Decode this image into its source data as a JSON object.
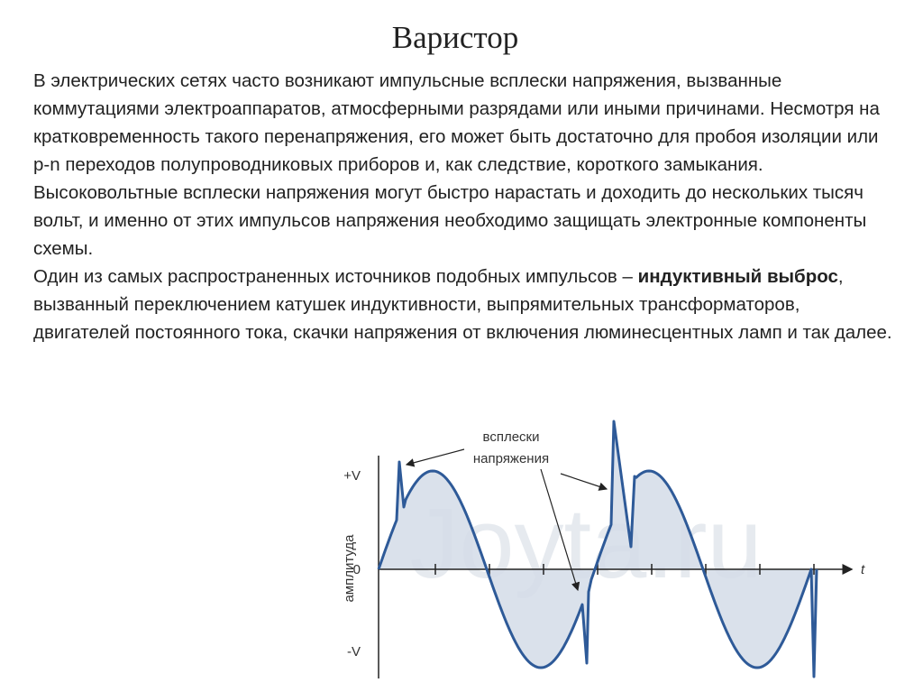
{
  "header": {
    "title": "Варистор"
  },
  "body": {
    "paragraphs": [
      [
        "В электрических сетях часто возникают импульсные всплески напряжения, вызванные коммутациями электроаппаратов, атмосферными разрядами или иными причинами. Несмотря на кратковременность такого перенапряжения, его может быть достаточно для пробоя изоляции или p-n переходов полупроводниковых приборов и, как следствие, короткого замыкания. Высоковольтные всплески напряжения могут быстро нарастать и доходить до нескольких тысяч вольт, и именно от этих импульсов напряжения необходимо защищать электронные компоненты схемы."
      ],
      [
        "Один из самых распространенных источников подобных импульсов – ",
        "индуктивный выброс",
        ", вызванный переключением катушек индуктивности, выпрямительных трансформаторов, двигателей постоянного тока, скачки напряжения от включения люминесцентных ламп и так далее."
      ]
    ]
  },
  "figure": {
    "y_axis_label": "амплитуда",
    "x_axis_label": "t",
    "ticks": [
      "+V",
      "0",
      "-V"
    ],
    "annotation": [
      "всплески",
      "напряжения"
    ],
    "watermark": "Joyta.ru"
  }
}
